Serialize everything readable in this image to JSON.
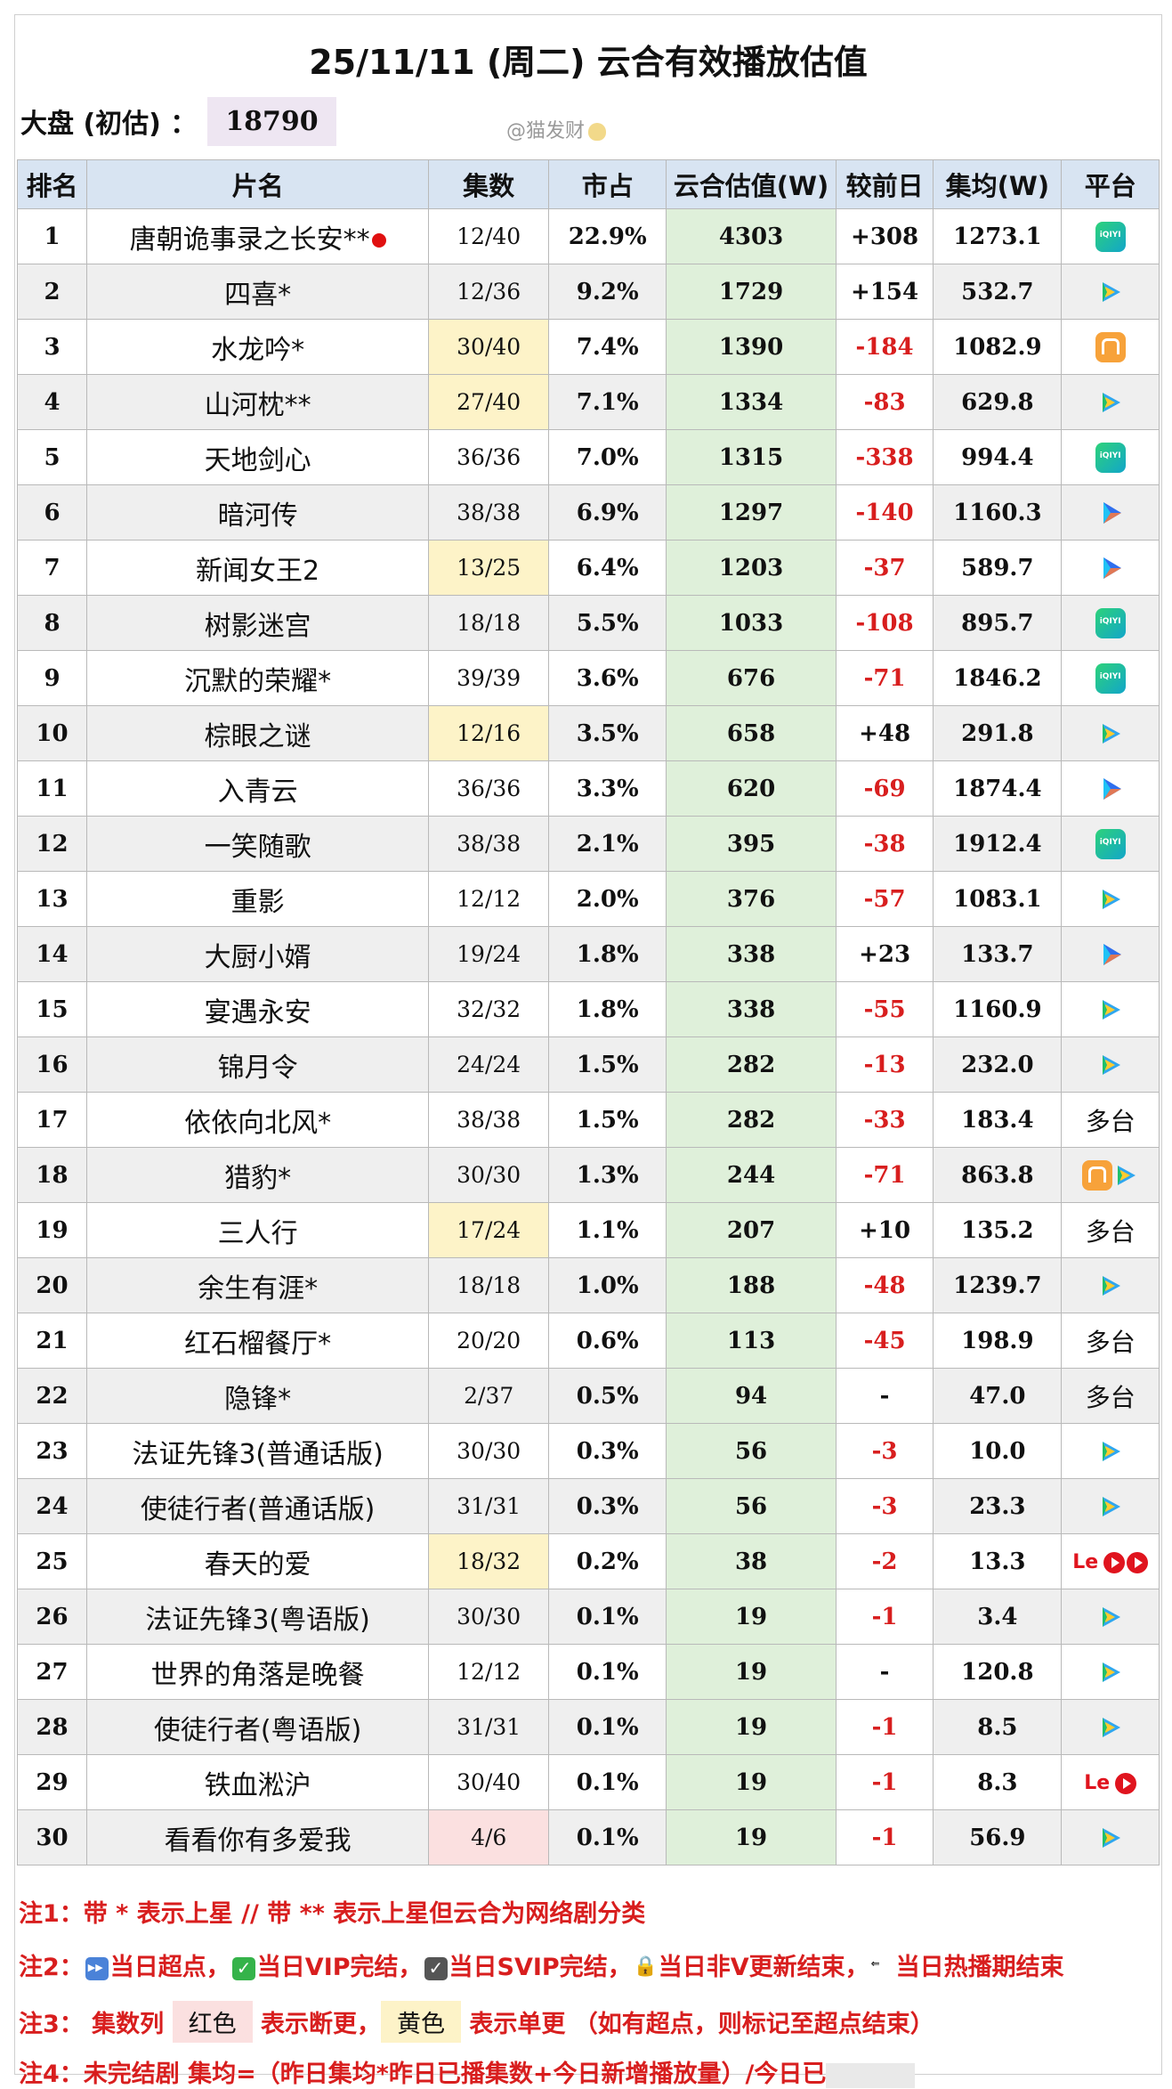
{
  "title": "25/11/11 (周二) 云合有效播放估值",
  "dapan": {
    "label": "大盘 (初估) ：",
    "value": "18790"
  },
  "watermark": "@猫发财",
  "table": {
    "headers": [
      "排名",
      "片名",
      "集数",
      "市占",
      "云合估值(W)",
      "较前日",
      "集均(W)",
      "平台"
    ],
    "rows": [
      {
        "rank": "1",
        "name": "唐朝诡事录之长安**",
        "eps": "12/40",
        "share": "22.9%",
        "est": "4303",
        "chg": "+308",
        "avg": "1273.1",
        "platform": "iqiyi",
        "reddot": true
      },
      {
        "rank": "2",
        "name": "四喜*",
        "eps": "12/36",
        "share": "9.2%",
        "est": "1729",
        "chg": "+154",
        "avg": "532.7",
        "platform": "tencent"
      },
      {
        "rank": "3",
        "name": "水龙吟*",
        "eps": "30/40",
        "share": "7.4%",
        "est": "1390",
        "chg": "-184",
        "avg": "1082.9",
        "platform": "mango",
        "eps_mark": "yellow"
      },
      {
        "rank": "4",
        "name": "山河枕**",
        "eps": "27/40",
        "share": "7.1%",
        "est": "1334",
        "chg": "-83",
        "avg": "629.8",
        "platform": "tencent",
        "eps_mark": "yellow"
      },
      {
        "rank": "5",
        "name": "天地剑心",
        "eps": "36/36",
        "share": "7.0%",
        "est": "1315",
        "chg": "-338",
        "avg": "994.4",
        "platform": "iqiyi"
      },
      {
        "rank": "6",
        "name": "暗河传",
        "eps": "38/38",
        "share": "6.9%",
        "est": "1297",
        "chg": "-140",
        "avg": "1160.3",
        "platform": "youku"
      },
      {
        "rank": "7",
        "name": "新闻女王2",
        "eps": "13/25",
        "share": "6.4%",
        "est": "1203",
        "chg": "-37",
        "avg": "589.7",
        "platform": "youku",
        "eps_mark": "yellow"
      },
      {
        "rank": "8",
        "name": "树影迷宫",
        "eps": "18/18",
        "share": "5.5%",
        "est": "1033",
        "chg": "-108",
        "avg": "895.7",
        "platform": "iqiyi"
      },
      {
        "rank": "9",
        "name": "沉默的荣耀*",
        "eps": "39/39",
        "share": "3.6%",
        "est": "676",
        "chg": "-71",
        "avg": "1846.2",
        "platform": "iqiyi"
      },
      {
        "rank": "10",
        "name": "棕眼之谜",
        "eps": "12/16",
        "share": "3.5%",
        "est": "658",
        "chg": "+48",
        "avg": "291.8",
        "platform": "tencent",
        "eps_mark": "yellow"
      },
      {
        "rank": "11",
        "name": "入青云",
        "eps": "36/36",
        "share": "3.3%",
        "est": "620",
        "chg": "-69",
        "avg": "1874.4",
        "platform": "youku"
      },
      {
        "rank": "12",
        "name": "一笑随歌",
        "eps": "38/38",
        "share": "2.1%",
        "est": "395",
        "chg": "-38",
        "avg": "1912.4",
        "platform": "iqiyi"
      },
      {
        "rank": "13",
        "name": "重影",
        "eps": "12/12",
        "share": "2.0%",
        "est": "376",
        "chg": "-57",
        "avg": "1083.1",
        "platform": "tencent"
      },
      {
        "rank": "14",
        "name": "大厨小婿",
        "eps": "19/24",
        "share": "1.8%",
        "est": "338",
        "chg": "+23",
        "avg": "133.7",
        "platform": "youku"
      },
      {
        "rank": "15",
        "name": "宴遇永安",
        "eps": "32/32",
        "share": "1.8%",
        "est": "338",
        "chg": "-55",
        "avg": "1160.9",
        "platform": "tencent"
      },
      {
        "rank": "16",
        "name": "锦月令",
        "eps": "24/24",
        "share": "1.5%",
        "est": "282",
        "chg": "-13",
        "avg": "232.0",
        "platform": "tencent"
      },
      {
        "rank": "17",
        "name": "依依向北风*",
        "eps": "38/38",
        "share": "1.5%",
        "est": "282",
        "chg": "-33",
        "avg": "183.4",
        "platform": "multi",
        "platform_text": "多台"
      },
      {
        "rank": "18",
        "name": "猎豹*",
        "eps": "30/30",
        "share": "1.3%",
        "est": "244",
        "chg": "-71",
        "avg": "863.8",
        "platform": "mango+tencent"
      },
      {
        "rank": "19",
        "name": "三人行",
        "eps": "17/24",
        "share": "1.1%",
        "est": "207",
        "chg": "+10",
        "avg": "135.2",
        "platform": "multi",
        "platform_text": "多台",
        "eps_mark": "yellow"
      },
      {
        "rank": "20",
        "name": "余生有涯*",
        "eps": "18/18",
        "share": "1.0%",
        "est": "188",
        "chg": "-48",
        "avg": "1239.7",
        "platform": "tencent"
      },
      {
        "rank": "21",
        "name": "红石榴餐厅*",
        "eps": "20/20",
        "share": "0.6%",
        "est": "113",
        "chg": "-45",
        "avg": "198.9",
        "platform": "multi",
        "platform_text": "多台"
      },
      {
        "rank": "22",
        "name": "隐锋*",
        "eps": "2/37",
        "share": "0.5%",
        "est": "94",
        "chg": "-",
        "avg": "47.0",
        "platform": "multi",
        "platform_text": "多台"
      },
      {
        "rank": "23",
        "name": "法证先锋3(普通话版)",
        "eps": "30/30",
        "share": "0.3%",
        "est": "56",
        "chg": "-3",
        "avg": "10.0",
        "platform": "tencent"
      },
      {
        "rank": "24",
        "name": "使徒行者(普通话版)",
        "eps": "31/31",
        "share": "0.3%",
        "est": "56",
        "chg": "-3",
        "avg": "23.3",
        "platform": "tencent"
      },
      {
        "rank": "25",
        "name": "春天的爱",
        "eps": "18/32",
        "share": "0.2%",
        "est": "38",
        "chg": "-2",
        "avg": "13.3",
        "platform": "le+multi",
        "eps_mark": "yellow"
      },
      {
        "rank": "26",
        "name": "法证先锋3(粤语版)",
        "eps": "30/30",
        "share": "0.1%",
        "est": "19",
        "chg": "-1",
        "avg": "3.4",
        "platform": "tencent"
      },
      {
        "rank": "27",
        "name": "世界的角落是晚餐",
        "eps": "12/12",
        "share": "0.1%",
        "est": "19",
        "chg": "-",
        "avg": "120.8",
        "platform": "tencent"
      },
      {
        "rank": "28",
        "name": "使徒行者(粤语版)",
        "eps": "31/31",
        "share": "0.1%",
        "est": "19",
        "chg": "-1",
        "avg": "8.5",
        "platform": "tencent"
      },
      {
        "rank": "29",
        "name": "铁血淞沪",
        "eps": "30/40",
        "share": "0.1%",
        "est": "19",
        "chg": "-1",
        "avg": "8.3",
        "platform": "le+single"
      },
      {
        "rank": "30",
        "name": "看看你有多爱我",
        "eps": "4/6",
        "share": "0.1%",
        "est": "19",
        "chg": "-1",
        "avg": "56.9",
        "platform": "tencent",
        "eps_mark": "red"
      }
    ]
  },
  "notes": {
    "n1": "注1：带 * 表示上星 // 带 ** 表示上星但云合为网络剧分类",
    "n2_prefix": "注2：",
    "n2_a": "当日超点，",
    "n2_b": "当日VIP完结，",
    "n2_c": "当日SVIP完结，",
    "n2_d": "当日非V更新结束，",
    "n2_e": "当日热播期结束",
    "n3_prefix": "注3：  集数列 ",
    "n3_red": "红色",
    "n3_mid": " 表示断更，",
    "n3_yellow": "黄色",
    "n3_tail": " 表示单更 （如有超点，则标记至超点结束）",
    "n4": "注4：未完结剧 集均=（昨日集均*昨日已播集数+今日新增播放量）/今日已"
  },
  "colors": {
    "header_bg": "#d8e4f2",
    "estimate_bg": "#dff0da",
    "negative": "#d81e1e",
    "single_update": "#fdf3c8",
    "break": "#fbe0e0",
    "dapan_bg": "#eee6f2"
  },
  "icons": {
    "iqiyi": "iqiyi-icon",
    "tencent": "tencent-video-icon",
    "youku": "youku-icon",
    "mango": "mango-tv-icon",
    "le": "letv-icon"
  }
}
